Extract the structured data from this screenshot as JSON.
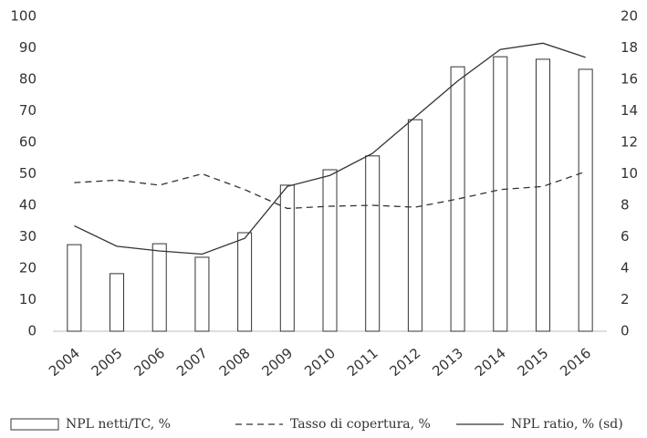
{
  "chart_data": {
    "type": "bar",
    "categories": [
      "2004",
      "2005",
      "2006",
      "2007",
      "2008",
      "2009",
      "2010",
      "2011",
      "2012",
      "2013",
      "2014",
      "2015",
      "2016"
    ],
    "series": [
      {
        "name": "NPL netti/TC, %",
        "type": "bar",
        "color": "#333333",
        "values": [
          27.5,
          18.3,
          27.8,
          23.5,
          31.3,
          46.4,
          51.3,
          55.7,
          67.2,
          84,
          87.2,
          86.4,
          83.2
        ]
      },
      {
        "name": "Tasso di copertura, %",
        "type": "line",
        "dash": true,
        "color": "#333333",
        "values": [
          47.2,
          48,
          46.4,
          50,
          45,
          39,
          39.7,
          40,
          39.4,
          42,
          45,
          46,
          50.7
        ]
      },
      {
        "name": "NPL ratio, % (sd)",
        "type": "line",
        "dash": false,
        "color": "#333333",
        "axis": "y2",
        "values": [
          6.7,
          5.4,
          5.1,
          4.9,
          5.9,
          9.2,
          9.9,
          11.3,
          13.6,
          15.9,
          17.9,
          18.3,
          17.4
        ]
      }
    ],
    "ylim": [
      0,
      100
    ],
    "yticks": [
      0,
      10,
      20,
      30,
      40,
      50,
      60,
      70,
      80,
      90,
      100
    ],
    "y2lim": [
      0,
      20
    ],
    "y2ticks": [
      0,
      2,
      4,
      6,
      8,
      10,
      12,
      14,
      16,
      18,
      20
    ],
    "grid": false
  }
}
